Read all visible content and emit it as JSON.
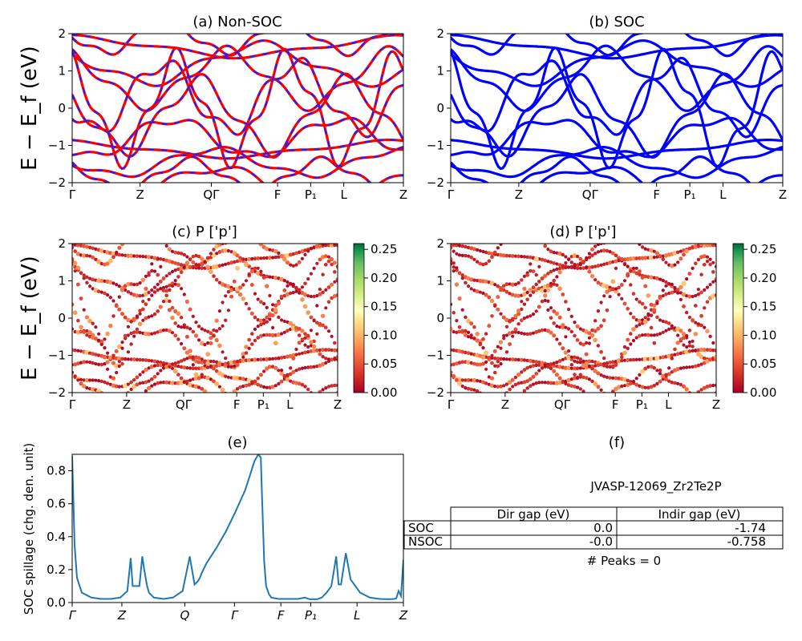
{
  "figure": {
    "kpoint_labels": [
      "Γ",
      "Z",
      "QΓ",
      "F",
      "P₁",
      "L",
      "Z"
    ],
    "kpoint_labels_e": [
      "Γ",
      "Z",
      "Q",
      "Γ",
      "F",
      "P₁",
      "L",
      "Z"
    ],
    "energy_ticks": [
      "2",
      "1",
      "0",
      "−1",
      "−2"
    ],
    "energy_ylabel": "E − E_f (eV)",
    "colorbar_ticks": [
      "0.25",
      "0.20",
      "0.15",
      "0.10",
      "0.05",
      "0.00"
    ],
    "colors": {
      "nonsoc_band": "#ff0000",
      "nonsoc_dash": "#1f1fff",
      "soc_band": "#0000ff",
      "spillage_line": "#1f77b4"
    }
  },
  "chart_data": [
    {
      "type": "line",
      "panel": "a",
      "title": "(a) Non-SOC",
      "ylabel": "E − E_f (eV)",
      "ylim": [
        -2,
        2
      ],
      "xticks": [
        "Γ",
        "Z",
        "QΓ",
        "F",
        "P₁",
        "L",
        "Z"
      ]
    },
    {
      "type": "line",
      "panel": "b",
      "title": "(b) SOC",
      "ylim": [
        -2,
        2
      ],
      "xticks": [
        "Γ",
        "Z",
        "QΓ",
        "F",
        "P₁",
        "L",
        "Z"
      ]
    },
    {
      "type": "scatter",
      "panel": "c",
      "title": "(c)  P ['p']",
      "ylabel": "E − E_f (eV)",
      "ylim": [
        -2,
        2
      ],
      "xticks": [
        "Γ",
        "Z",
        "QΓ",
        "F",
        "P₁",
        "L",
        "Z"
      ],
      "colorbar_range": [
        0.0,
        0.26
      ]
    },
    {
      "type": "scatter",
      "panel": "d",
      "title": "(d) P ['p']",
      "ylim": [
        -2,
        2
      ],
      "xticks": [
        "Γ",
        "Z",
        "QΓ",
        "F",
        "P₁",
        "L",
        "Z"
      ],
      "colorbar_range": [
        0.0,
        0.26
      ]
    },
    {
      "type": "line",
      "panel": "e",
      "title": "(e)",
      "ylabel": "SOC spillage (chg. den. unit)",
      "ylim": [
        0,
        0.9
      ],
      "yticks": [
        "0.0",
        "0.2",
        "0.4",
        "0.6",
        "0.8"
      ],
      "xticks": [
        "Γ",
        "Z",
        "Q",
        "Γ",
        "F",
        "P₁",
        "L",
        "Z"
      ],
      "x": [
        0.0,
        0.5,
        1.0,
        2.0,
        4.0,
        6.0,
        8.0,
        10.0,
        11.5,
        12.2,
        12.6,
        13.0,
        14.0,
        14.6,
        15.0,
        15.6,
        16.0,
        17.0,
        19.0,
        21.0,
        23.0,
        24.5,
        25.5,
        26.2,
        26.6,
        27.0,
        28.0,
        30.0,
        32.0,
        34.0,
        36.0,
        37.0,
        38.0,
        38.8,
        39.3,
        39.6,
        40.0,
        40.4,
        41.0,
        41.5,
        43.0,
        45.0,
        47.0,
        48.5,
        49.0,
        49.5,
        50.0,
        51.0,
        52.0,
        53.0,
        54.0,
        55.0,
        55.5,
        56.0,
        57.0,
        58.0,
        60.0,
        62.0,
        64.0,
        66.0,
        67.0,
        67.5,
        68.0,
        68.5,
        69.0
      ],
      "y": [
        0.89,
        0.35,
        0.15,
        0.06,
        0.03,
        0.022,
        0.022,
        0.03,
        0.07,
        0.27,
        0.1,
        0.1,
        0.1,
        0.28,
        0.2,
        0.1,
        0.06,
        0.03,
        0.022,
        0.03,
        0.07,
        0.28,
        0.11,
        0.13,
        0.15,
        0.18,
        0.24,
        0.33,
        0.43,
        0.55,
        0.68,
        0.77,
        0.86,
        0.9,
        0.88,
        0.6,
        0.25,
        0.1,
        0.05,
        0.03,
        0.022,
        0.022,
        0.022,
        0.03,
        0.025,
        0.02,
        0.02,
        0.02,
        0.03,
        0.06,
        0.1,
        0.28,
        0.11,
        0.11,
        0.3,
        0.14,
        0.06,
        0.03,
        0.022,
        0.02,
        0.022,
        0.025,
        0.07,
        0.04,
        0.26
      ]
    },
    {
      "type": "table",
      "panel": "f",
      "title": "(f)",
      "caption": "JVASP-12069_Zr2Te2P",
      "columns": [
        "Dir gap (eV)",
        "Indir gap (eV)"
      ],
      "rows": [
        {
          "label": "SOC",
          "values": [
            "0.0",
            "-1.74"
          ]
        },
        {
          "label": "NSOC",
          "values": [
            "-0.0",
            "-0.758"
          ]
        }
      ],
      "footer": "# Peaks = 0"
    }
  ]
}
